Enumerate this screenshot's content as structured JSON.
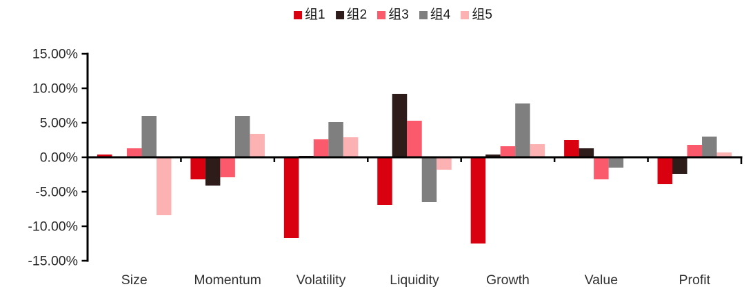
{
  "chart_data": {
    "type": "bar",
    "title": "",
    "categories": [
      "Size",
      "Momentum",
      "Volatility",
      "Liquidity",
      "Growth",
      "Value",
      "Profit"
    ],
    "series": [
      {
        "name": "组1",
        "color": "#D9000F",
        "values": [
          0.4,
          -3.2,
          -11.7,
          -6.9,
          -12.5,
          2.5,
          -3.9
        ]
      },
      {
        "name": "组2",
        "color": "#2E1C1A",
        "values": [
          0.0,
          -4.1,
          0.2,
          9.2,
          0.4,
          1.3,
          -2.4
        ]
      },
      {
        "name": "组3",
        "color": "#FA5A6B",
        "values": [
          1.3,
          -2.9,
          2.6,
          5.3,
          1.6,
          -3.2,
          1.8
        ]
      },
      {
        "name": "组4",
        "color": "#7F7F7F",
        "values": [
          6.0,
          6.0,
          5.1,
          -6.5,
          7.8,
          -1.5,
          3.0
        ]
      },
      {
        "name": "组5",
        "color": "#FCB1B3",
        "values": [
          -8.4,
          3.4,
          2.9,
          -1.8,
          1.9,
          0.1,
          0.7
        ]
      }
    ],
    "xlabel": "",
    "ylabel": "",
    "ylim": [
      -15,
      15
    ],
    "ytick_step": 5,
    "ytick_labels": [
      "15.00%",
      "10.00%",
      "5.00%",
      "0.00%",
      "-5.00%",
      "-10.00%",
      "-15.00%"
    ],
    "legend_position": "top",
    "grid": false,
    "axis_color": "#000000",
    "background_color": "#FFFFFF"
  }
}
